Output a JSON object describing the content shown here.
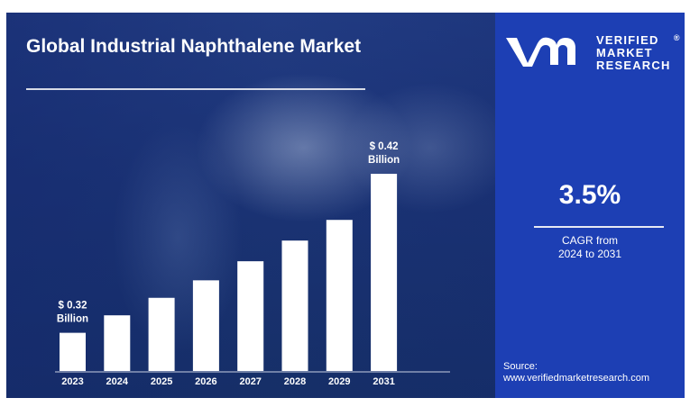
{
  "title": "Global Industrial Naphthalene Market",
  "cagr": {
    "value": "3.5%",
    "label_line1": "CAGR from",
    "label_line2": "2024 to 2031"
  },
  "brand": {
    "line1": "VERIFIED",
    "line2": "MARKET",
    "line3": "RESEARCH",
    "mark": "®"
  },
  "source": {
    "label": "Source:",
    "url": "www.verifiedmarketresearch.com"
  },
  "colors": {
    "background_left": "#1c3576",
    "panel_right": "#1d3fb4",
    "bars": "#ffffff",
    "text": "#ffffff"
  },
  "chart_data": {
    "type": "bar",
    "categories": [
      "2023",
      "2024",
      "2025",
      "2026",
      "2027",
      "2028",
      "2029",
      "2031"
    ],
    "values": [
      0.32,
      0.331,
      0.342,
      0.353,
      0.365,
      0.378,
      0.391,
      0.42
    ],
    "ylim": [
      0.296,
      0.42
    ],
    "title": "Global Industrial Naphthalene Market",
    "xlabel": "",
    "ylabel": "",
    "annotations": [
      {
        "category": "2023",
        "line1": "$ 0.32",
        "line2": "Billion"
      },
      {
        "category": "2031",
        "line1": "$ 0.42",
        "line2": "Billion"
      }
    ],
    "grid": false,
    "legend": "none"
  }
}
